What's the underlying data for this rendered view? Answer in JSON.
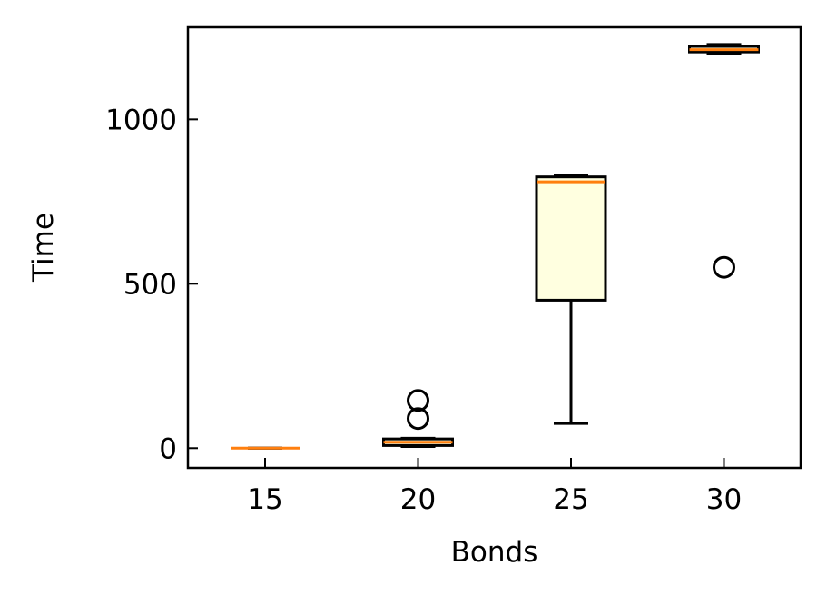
{
  "chart_data": {
    "type": "box",
    "title": "",
    "xlabel": "Bonds",
    "ylabel": "Time",
    "categories": [
      "15",
      "20",
      "25",
      "30"
    ],
    "ylim": [
      -60,
      1280
    ],
    "yticks": [
      0,
      500,
      1000
    ],
    "boxes": [
      {
        "category": "15",
        "whislo": 0,
        "q1": 0,
        "median": 0,
        "q3": 0,
        "whishi": 0,
        "fliers": []
      },
      {
        "category": "20",
        "whislo": 5,
        "q1": 8,
        "median": 18,
        "q3": 28,
        "whishi": 30,
        "fliers": [
          90,
          145
        ]
      },
      {
        "category": "25",
        "whislo": 75,
        "q1": 450,
        "median": 810,
        "q3": 825,
        "whishi": 830,
        "fliers": []
      },
      {
        "category": "30",
        "whislo": 1200,
        "q1": 1205,
        "median": 1212,
        "q3": 1222,
        "whishi": 1228,
        "fliers": [
          550
        ]
      }
    ],
    "grid": false,
    "colors": {
      "box_fill": "#ffffe0",
      "box_edge": "#000000",
      "median": "#ff7f0e"
    }
  }
}
